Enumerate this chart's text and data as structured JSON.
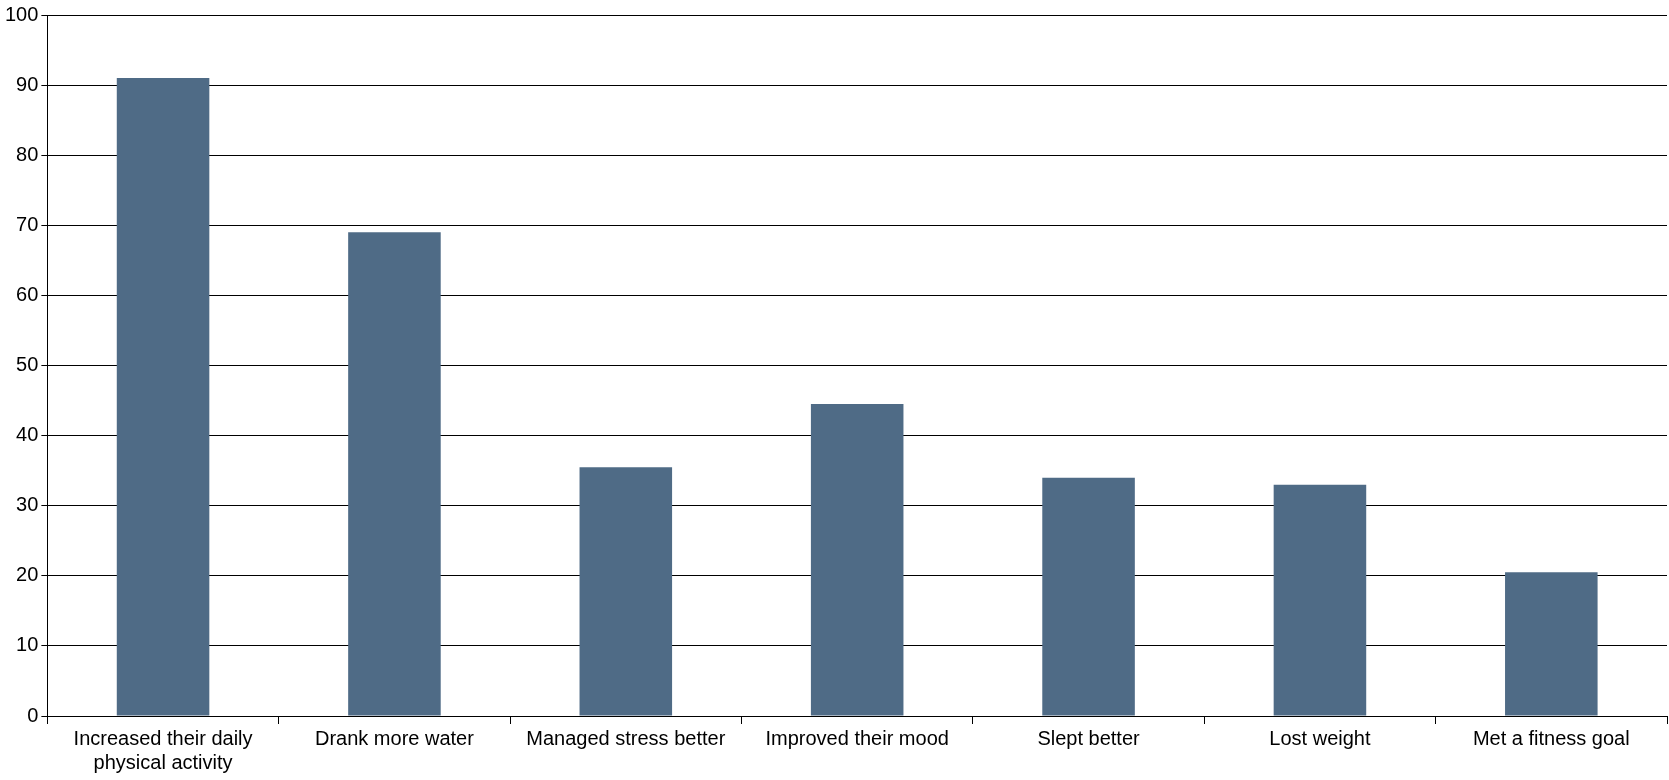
{
  "chart_data": {
    "type": "bar",
    "categories": [
      "Increased their daily physical activity",
      "Drank more water",
      "Managed stress better",
      "Improved their mood",
      "Slept better",
      "Lost weight",
      "Met a fitness goal"
    ],
    "values": [
      91,
      69,
      35.5,
      44.5,
      34,
      33,
      20.5
    ],
    "color": "#4f6b86",
    "ylim": [
      0,
      100
    ],
    "yticks": [
      0,
      10,
      20,
      30,
      40,
      50,
      60,
      70,
      80,
      90,
      100
    ],
    "grid": "y"
  }
}
